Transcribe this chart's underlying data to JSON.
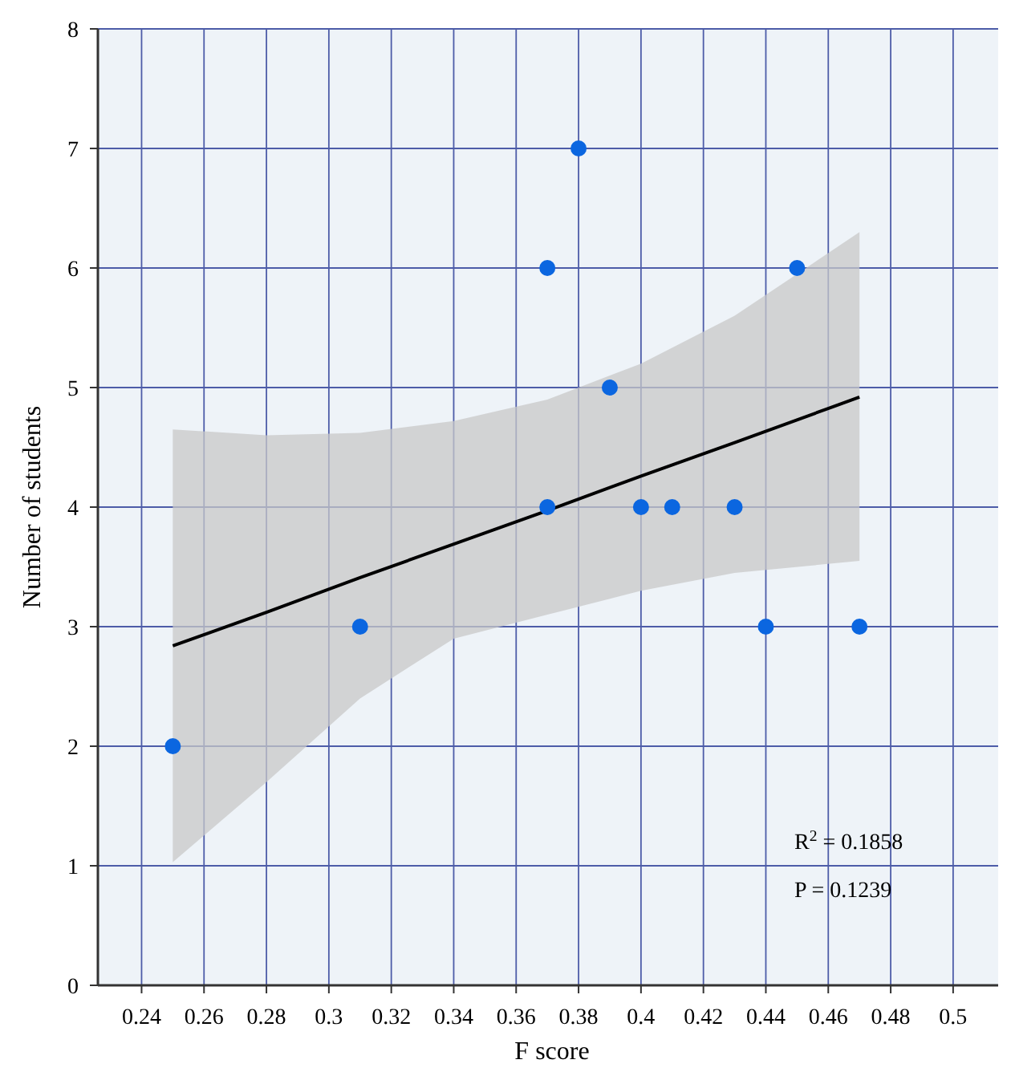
{
  "chart_data": {
    "type": "scatter",
    "xlabel": "F score",
    "ylabel": "Number of students",
    "xlim": [
      0.226,
      0.517
    ],
    "ylim": [
      0,
      8
    ],
    "xticks": [
      0.24,
      0.26,
      0.28,
      0.3,
      0.32,
      0.34,
      0.36,
      0.38,
      0.4,
      0.42,
      0.44,
      0.46,
      0.48,
      0.5
    ],
    "yticks": [
      0,
      1,
      2,
      3,
      4,
      5,
      6,
      7,
      8
    ],
    "grid": true,
    "series": [
      {
        "marker": "circle",
        "color": "#0b66e0",
        "x": [
          0.25,
          0.31,
          0.37,
          0.37,
          0.38,
          0.39,
          0.4,
          0.41,
          0.43,
          0.44,
          0.45,
          0.47
        ],
        "values": [
          2,
          3,
          4,
          6,
          7,
          5,
          4,
          4,
          4,
          3,
          6,
          3
        ]
      },
      {
        "type": "line",
        "color": "#000000",
        "x": [
          0.25,
          0.28,
          0.31,
          0.34,
          0.37,
          0.4,
          0.43,
          0.47
        ],
        "values": [
          2.84,
          3.12,
          3.41,
          3.69,
          3.97,
          4.26,
          4.54,
          4.92
        ],
        "lower": [
          1.03,
          1.7,
          2.4,
          2.9,
          3.1,
          3.3,
          3.45,
          3.55
        ],
        "upper": [
          4.65,
          4.6,
          4.62,
          4.72,
          4.9,
          5.2,
          5.6,
          6.3
        ]
      }
    ],
    "annotations": [
      "R$^{2}$ = 0.1858",
      "P = 0.1239"
    ]
  }
}
